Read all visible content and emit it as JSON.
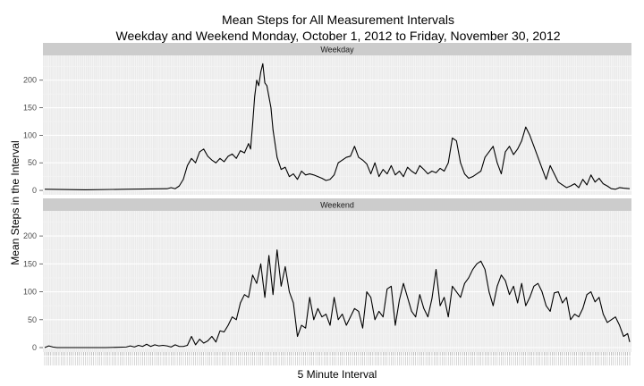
{
  "chart_data": {
    "type": "line",
    "title": "Mean Steps for All Measurement Intervals",
    "subtitle": "Weekday and Weekend Monday, October 1, 2012 to Friday, November 30, 2012",
    "xlabel": "5 Minute Interval",
    "ylabel": "Mean Steps in the Interval",
    "ylim": [
      -8,
      245
    ],
    "yticks": [
      0,
      50,
      100,
      150,
      200
    ],
    "grid": true,
    "x_interval_count": 288,
    "panels": [
      {
        "name": "Weekday",
        "x": [
          0,
          20,
          40,
          60,
          62,
          64,
          66,
          68,
          70,
          72,
          74,
          76,
          78,
          80,
          82,
          84,
          86,
          88,
          90,
          92,
          94,
          96,
          98,
          100,
          101,
          102,
          103,
          104,
          105,
          106,
          107,
          108,
          109,
          110,
          111,
          112,
          114,
          116,
          118,
          120,
          122,
          124,
          126,
          128,
          130,
          132,
          134,
          136,
          138,
          140,
          142,
          144,
          146,
          148,
          150,
          152,
          154,
          156,
          158,
          160,
          162,
          164,
          166,
          168,
          170,
          172,
          174,
          176,
          178,
          180,
          182,
          184,
          186,
          188,
          190,
          192,
          194,
          196,
          198,
          200,
          202,
          204,
          206,
          208,
          210,
          212,
          214,
          216,
          218,
          220,
          222,
          224,
          226,
          228,
          230,
          232,
          234,
          236,
          238,
          240,
          242,
          244,
          246,
          248,
          250,
          252,
          254,
          256,
          258,
          260,
          262,
          264,
          266,
          268,
          270,
          272,
          274,
          276,
          278,
          280,
          282,
          284,
          287
        ],
        "values": [
          2,
          1,
          2,
          3,
          5,
          3,
          8,
          20,
          45,
          58,
          50,
          70,
          75,
          62,
          55,
          50,
          58,
          52,
          62,
          66,
          58,
          72,
          68,
          85,
          75,
          120,
          170,
          200,
          190,
          215,
          230,
          195,
          190,
          170,
          150,
          110,
          60,
          38,
          42,
          25,
          30,
          20,
          35,
          28,
          30,
          28,
          25,
          22,
          18,
          20,
          28,
          50,
          55,
          60,
          62,
          80,
          60,
          55,
          48,
          30,
          50,
          25,
          38,
          30,
          45,
          28,
          35,
          25,
          42,
          35,
          30,
          45,
          38,
          30,
          35,
          32,
          40,
          35,
          50,
          95,
          90,
          50,
          30,
          22,
          25,
          30,
          35,
          60,
          70,
          80,
          50,
          30,
          70,
          80,
          65,
          75,
          90,
          115,
          100,
          80,
          60,
          40,
          20,
          45,
          30,
          15,
          10,
          5,
          8,
          12,
          5,
          20,
          10,
          28,
          15,
          22,
          12,
          8,
          3,
          2,
          5,
          4,
          3
        ]
      },
      {
        "name": "Weekend",
        "x": [
          0,
          2,
          4,
          6,
          30,
          40,
          42,
          44,
          46,
          48,
          50,
          52,
          54,
          56,
          58,
          60,
          62,
          64,
          66,
          68,
          70,
          72,
          74,
          76,
          78,
          80,
          82,
          84,
          86,
          88,
          90,
          92,
          94,
          96,
          98,
          100,
          102,
          104,
          106,
          108,
          110,
          112,
          114,
          116,
          118,
          120,
          122,
          124,
          126,
          128,
          130,
          132,
          134,
          136,
          138,
          140,
          142,
          144,
          146,
          148,
          150,
          152,
          154,
          156,
          158,
          160,
          162,
          164,
          166,
          168,
          170,
          172,
          174,
          176,
          178,
          180,
          182,
          184,
          186,
          188,
          190,
          192,
          194,
          196,
          198,
          200,
          202,
          204,
          206,
          208,
          210,
          212,
          214,
          216,
          218,
          220,
          222,
          224,
          226,
          228,
          230,
          232,
          234,
          236,
          238,
          240,
          242,
          244,
          246,
          248,
          250,
          252,
          254,
          256,
          258,
          260,
          262,
          264,
          266,
          268,
          270,
          272,
          274,
          276,
          278,
          280,
          282,
          284,
          286,
          287
        ],
        "values": [
          0,
          3,
          1,
          0,
          0,
          1,
          3,
          1,
          4,
          2,
          6,
          2,
          5,
          3,
          4,
          3,
          1,
          5,
          2,
          2,
          4,
          20,
          5,
          15,
          8,
          12,
          20,
          10,
          30,
          28,
          40,
          55,
          50,
          80,
          95,
          90,
          130,
          115,
          150,
          90,
          165,
          95,
          175,
          110,
          145,
          100,
          80,
          20,
          40,
          35,
          90,
          50,
          70,
          55,
          60,
          40,
          90,
          50,
          60,
          40,
          55,
          70,
          65,
          35,
          100,
          90,
          50,
          65,
          55,
          105,
          110,
          40,
          85,
          115,
          90,
          65,
          55,
          95,
          70,
          55,
          88,
          140,
          75,
          90,
          55,
          110,
          100,
          90,
          115,
          125,
          140,
          150,
          155,
          140,
          100,
          75,
          110,
          130,
          120,
          95,
          110,
          80,
          115,
          75,
          90,
          110,
          115,
          100,
          75,
          65,
          98,
          100,
          80,
          90,
          50,
          60,
          55,
          70,
          95,
          100,
          82,
          90,
          60,
          45,
          50,
          55,
          40,
          20,
          25,
          10
        ]
      }
    ]
  }
}
